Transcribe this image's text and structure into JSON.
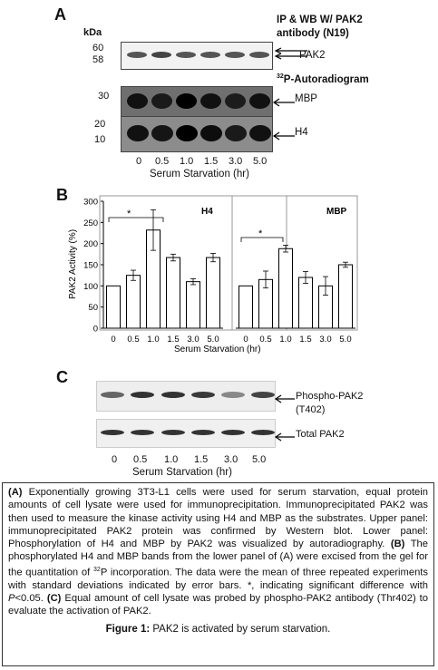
{
  "panel_a": {
    "letter": "A",
    "kda_label": "kDa",
    "header_line1": "IP  & WB W/ PAK2",
    "header_line2": "antibody  (N19)",
    "markers_top": [
      "60",
      "58"
    ],
    "pak2_label": "PAK2",
    "autoradiogram_sup": "32",
    "autoradiogram_label": "P-Autoradiogram",
    "markers_mbp": [
      "30"
    ],
    "mbp_label": "MBP",
    "markers_h4": [
      "20",
      "10"
    ],
    "h4_label": "H4",
    "lanes": [
      "0",
      "0.5",
      "1.0",
      "1.5",
      "3.0",
      "5.0"
    ],
    "xlabel": "Serum Starvation (hr)"
  },
  "panel_b": {
    "letter": "B",
    "significance": "*"
  },
  "chart_data": [
    {
      "type": "bar",
      "title": "H4",
      "categories": [
        "0",
        "0.5",
        "1.0",
        "1.5",
        "3.0",
        "5.0"
      ],
      "values": [
        100,
        125,
        232,
        167,
        110,
        167
      ],
      "errors": [
        0,
        12,
        48,
        8,
        7,
        10
      ],
      "ylabel": "PAK2 Activity (%)",
      "xlabel": "Serum Starvation (hr)",
      "ylim": [
        0,
        300
      ],
      "yticks": [
        "0",
        "50",
        "100",
        "150",
        "200",
        "250",
        "300"
      ],
      "significance": {
        "from": "0",
        "to": "1.0",
        "label": "*"
      }
    },
    {
      "type": "bar",
      "title": "MBP",
      "categories": [
        "0",
        "0.5",
        "1.0",
        "1.5",
        "3.0",
        "5.0"
      ],
      "values": [
        100,
        115,
        188,
        120,
        100,
        150
      ],
      "errors": [
        0,
        20,
        8,
        14,
        22,
        6
      ],
      "ylim": [
        0,
        300
      ],
      "significance": {
        "from": "0",
        "to": "1.0",
        "label": "*"
      }
    }
  ],
  "panel_c": {
    "letter": "C",
    "phospho_label_1": "Phospho-PAK2",
    "phospho_label_2": "(T402)",
    "total_label": "Total PAK2",
    "lanes": [
      "0",
      "0.5",
      "1.0",
      "1.5",
      "3.0",
      "5.0"
    ],
    "xlabel": "Serum Starvation (hr)"
  },
  "caption": {
    "a_tag": "(A)",
    "a_text": " Exponentially growing 3T3-L1 cells were used for serum starvation, equal protein amounts of cell lysate were used for immunoprecipitation. Immunoprecipitated PAK2 was then used to measure the kinase activity using H4 and MBP as the substrates. Upper panel: immunoprecipitated PAK2 protein was confirmed by Western blot. Lower panel: Phosphorylation of H4 and MBP by PAK2 was visualized by autoradiography. ",
    "b_tag": "(B)",
    "b_text_1": " The phosphorylated H4 and MBP bands from the lower panel of (A) were excised from the gel for the quantitation of ",
    "b_sup": "32",
    "b_text_2": "P incorporation. The data were the mean of three repeated experiments with standard deviations indicated by error bars. *, indicating significant difference with ",
    "b_italic": "P",
    "b_text_3": "<0.05. ",
    "c_tag": "(C)",
    "c_text": " Equal amount of cell lysate was probed by phospho-PAK2 antibody (Thr402) to evaluate the activation of PAK2.",
    "figure_label": "Figure 1:",
    "figure_title": " PAK2 is activated by serum starvation."
  }
}
